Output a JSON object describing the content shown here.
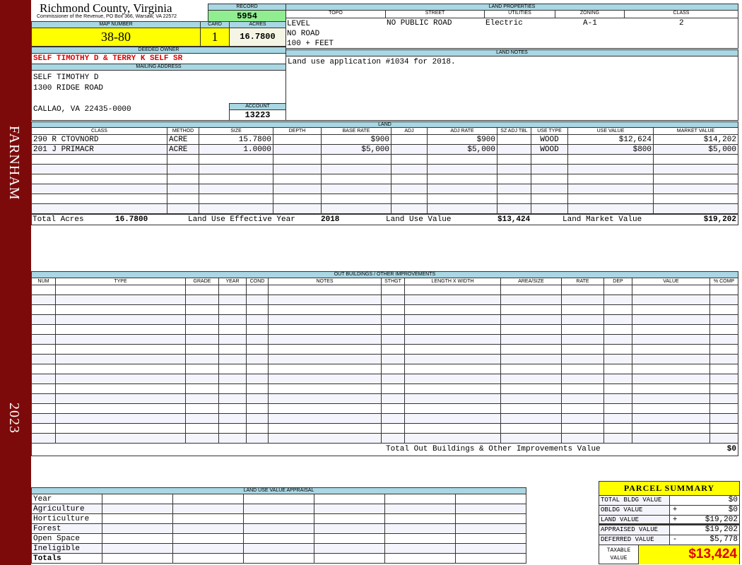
{
  "sidebar": {
    "district": "FARNHAM",
    "year": "2023"
  },
  "header": {
    "title": "Richmond County, Virginia",
    "subtitle": "Commissioner of the Revenue, PO Box 366, Warsaw, VA 22572",
    "record_label": "RECORD",
    "record": "5954",
    "map_label": "MAP NUMBER",
    "map": "38-80",
    "card_label": "CARD",
    "card": "1",
    "acres_label": "ACRES",
    "acres": "16.7800"
  },
  "owner": {
    "label": "DEEDED OWNER",
    "name": "SELF TIMOTHY D & TERRY K SELF SR",
    "mailing_label": "MAILING ADDRESS",
    "line1": "SELF TIMOTHY D",
    "line2": "1300 RIDGE ROAD",
    "line3": "CALLAO, VA 22435-0000",
    "account_label": "ACCOUNT",
    "account": "13223"
  },
  "land_properties": {
    "label": "LAND PROPERTIES",
    "headers": [
      "TOPO",
      "STREET",
      "UTILITIES",
      "ZONING",
      "CLASS"
    ],
    "topo": [
      "LEVEL",
      "NO ROAD",
      "100 + FEET"
    ],
    "street": "NO PUBLIC ROAD",
    "utilities": "Electric",
    "zoning": "A-1",
    "class": "2"
  },
  "land_notes": {
    "label": "LAND NOTES",
    "text": "Land use application #1034 for 2018."
  },
  "land": {
    "label": "LAND",
    "headers": [
      "CLASS",
      "METHOD",
      "SIZE",
      "DEPTH",
      "BASE RATE",
      "ADJ",
      "ADJ RATE",
      "SZ ADJ TBL",
      "USE TYPE",
      "USE VALUE",
      "MARKET VALUE"
    ],
    "rows": [
      [
        "290 R CTOVNORD",
        "ACRE",
        "15.7800",
        "",
        "$900",
        "",
        "$900",
        "",
        "WOOD",
        "$12,624",
        "$14,202"
      ],
      [
        "201 J PRIMACR",
        "ACRE",
        "1.0000",
        "",
        "$5,000",
        "",
        "$5,000",
        "",
        "WOOD",
        "$800",
        "$5,000"
      ]
    ],
    "totals": {
      "acres_label": "Total Acres",
      "acres": "16.7800",
      "year_label": "Land Use Effective Year",
      "year": "2018",
      "use_label": "Land Use Value",
      "use": "$13,424",
      "market_label": "Land Market Value",
      "market": "$19,202"
    }
  },
  "outbuildings": {
    "label": "OUT BUILDINGS / OTHER IMPROVEMENTS",
    "headers": [
      "NUM",
      "TYPE",
      "GRADE",
      "YEAR",
      "COND",
      "NOTES",
      "STHGT",
      "LENGTH X WIDTH",
      "AREA/SIZE",
      "RATE",
      "DEP",
      "VALUE",
      "% COMP"
    ],
    "total_label": "Total Out Buildings & Other Improvements Value",
    "total": "$0"
  },
  "land_use": {
    "label": "LAND USE VALUE APPRAISAL",
    "rows": [
      "Year",
      "Agriculture",
      "Horticulture",
      "Forest",
      "Open Space",
      "Ineligible",
      "Totals"
    ]
  },
  "summary": {
    "title": "PARCEL SUMMARY",
    "rows": [
      {
        "label": "TOTAL BLDG VALUE",
        "op": "",
        "value": "$0"
      },
      {
        "label": "OBLDG VALUE",
        "op": "+",
        "value": "$0"
      },
      {
        "label": "LAND VALUE",
        "op": "+",
        "value": "$19,202"
      },
      {
        "label": "APPRAISED VALUE",
        "op": "",
        "value": "$19,202"
      },
      {
        "label": "DEFERRED VALUE",
        "op": "-",
        "value": "$5,778"
      }
    ],
    "taxable_label": "TAXABLE VALUE",
    "taxable": "$13,424"
  },
  "colors": {
    "sidebar": "#7d0a0a",
    "header": "#a9d7e3",
    "highlight": "#ffff00",
    "record": "#90ee90",
    "owner_text": "#e00000"
  }
}
